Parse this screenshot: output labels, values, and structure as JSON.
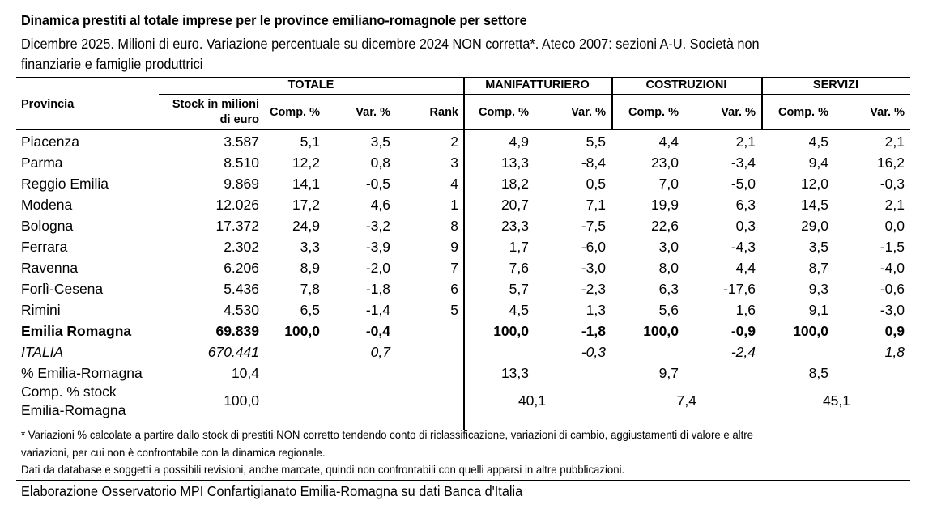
{
  "title": "Dinamica prestiti al totale imprese per le province emiliano-romagnole per settore",
  "subtitle_line1": "Dicembre 2025. Milioni di euro. Variazione percentuale su dicembre 2024 NON corretta*. Ateco 2007: sezioni A-U. Società non",
  "subtitle_line2": "finanziarie e famiglie produttrici",
  "header": {
    "provincia": "Provincia",
    "groups": {
      "totale": "TOTALE",
      "manifatturiero": "MANIFATTURIERO",
      "costruzioni": "COSTRUZIONI",
      "servizi": "SERVIZI"
    },
    "stock_line1": "Stock in milioni",
    "stock_line2": "di euro",
    "comp": "Comp. %",
    "var": "Var. %",
    "rank": "Rank"
  },
  "rows": [
    {
      "name": "Piacenza",
      "stock": "3.587",
      "comp": "5,1",
      "var": "3,5",
      "rank": "2",
      "man_comp": "4,9",
      "man_var": "5,5",
      "cos_comp": "4,4",
      "cos_var": "2,1",
      "ser_comp": "4,5",
      "ser_var": "2,1"
    },
    {
      "name": "Parma",
      "stock": "8.510",
      "comp": "12,2",
      "var": "0,8",
      "rank": "3",
      "man_comp": "13,3",
      "man_var": "-8,4",
      "cos_comp": "23,0",
      "cos_var": "-3,4",
      "ser_comp": "9,4",
      "ser_var": "16,2"
    },
    {
      "name": "Reggio Emilia",
      "stock": "9.869",
      "comp": "14,1",
      "var": "-0,5",
      "rank": "4",
      "man_comp": "18,2",
      "man_var": "0,5",
      "cos_comp": "7,0",
      "cos_var": "-5,0",
      "ser_comp": "12,0",
      "ser_var": "-0,3"
    },
    {
      "name": "Modena",
      "stock": "12.026",
      "comp": "17,2",
      "var": "4,6",
      "rank": "1",
      "man_comp": "20,7",
      "man_var": "7,1",
      "cos_comp": "19,9",
      "cos_var": "6,3",
      "ser_comp": "14,5",
      "ser_var": "2,1"
    },
    {
      "name": "Bologna",
      "stock": "17.372",
      "comp": "24,9",
      "var": "-3,2",
      "rank": "8",
      "man_comp": "23,3",
      "man_var": "-7,5",
      "cos_comp": "22,6",
      "cos_var": "0,3",
      "ser_comp": "29,0",
      "ser_var": "0,0"
    },
    {
      "name": "Ferrara",
      "stock": "2.302",
      "comp": "3,3",
      "var": "-3,9",
      "rank": "9",
      "man_comp": "1,7",
      "man_var": "-6,0",
      "cos_comp": "3,0",
      "cos_var": "-4,3",
      "ser_comp": "3,5",
      "ser_var": "-1,5"
    },
    {
      "name": "Ravenna",
      "stock": "6.206",
      "comp": "8,9",
      "var": "-2,0",
      "rank": "7",
      "man_comp": "7,6",
      "man_var": "-3,0",
      "cos_comp": "8,0",
      "cos_var": "4,4",
      "ser_comp": "8,7",
      "ser_var": "-4,0"
    },
    {
      "name": "Forlì-Cesena",
      "stock": "5.436",
      "comp": "7,8",
      "var": "-1,8",
      "rank": "6",
      "man_comp": "5,7",
      "man_var": "-2,3",
      "cos_comp": "6,3",
      "cos_var": "-17,6",
      "ser_comp": "9,3",
      "ser_var": "-0,6"
    },
    {
      "name": "Rimini",
      "stock": "4.530",
      "comp": "6,5",
      "var": "-1,4",
      "rank": "5",
      "man_comp": "4,5",
      "man_var": "1,3",
      "cos_comp": "5,6",
      "cos_var": "1,6",
      "ser_comp": "9,1",
      "ser_var": "-3,0"
    }
  ],
  "total_row": {
    "name": "Emilia Romagna",
    "stock": "69.839",
    "comp": "100,0",
    "var": "-0,4",
    "man_comp": "100,0",
    "man_var": "-1,8",
    "cos_comp": "100,0",
    "cos_var": "-0,9",
    "ser_comp": "100,0",
    "ser_var": "0,9"
  },
  "italia_row": {
    "name": "ITALIA",
    "stock": "670.441",
    "var": "0,7",
    "man_var": "-0,3",
    "cos_var": "-2,4",
    "ser_var": "1,8"
  },
  "pct_er_row": {
    "name": "% Emilia-Romagna",
    "stock": "10,4",
    "man": "13,3",
    "cos": "9,7",
    "ser": "8,5"
  },
  "comp_stock_row": {
    "name_line1": "Comp. % stock",
    "name_line2": "Emilia-Romagna",
    "stock": "100,0",
    "man": "40,1",
    "cos": "7,4",
    "ser": "45,1"
  },
  "notes": {
    "line1": "* Variazioni % calcolate a partire dallo stock di prestiti NON corretto tendendo conto di riclassificazione, variazioni di cambio, aggiustamenti di valore e altre",
    "line2": "variazioni, per cui non è confrontabile con la dinamica regionale.",
    "line3": "Dati da database e soggetti a possibili revisioni, anche marcate, quindi non confrontabili con quelli apparsi in altre pubblicazioni."
  },
  "source": "Elaborazione Osservatorio MPI Confartigianato Emilia-Romagna su dati Banca d'Italia"
}
